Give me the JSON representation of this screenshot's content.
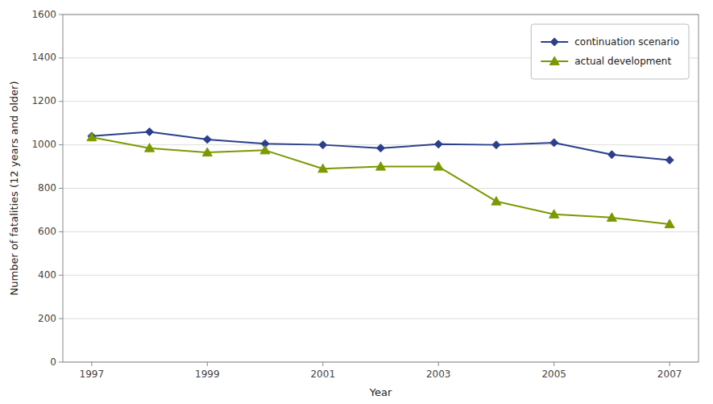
{
  "chart_data": {
    "type": "line",
    "x": [
      1997,
      1998,
      1999,
      2000,
      2001,
      2002,
      2003,
      2004,
      2005,
      2006,
      2007
    ],
    "series": [
      {
        "name": "continuation scenario",
        "color": "#2b3f8c",
        "marker": "diamond",
        "values": [
          1040,
          1060,
          1025,
          1005,
          1000,
          985,
          1003,
          1000,
          1010,
          955,
          930
        ]
      },
      {
        "name": "actual development",
        "color": "#7a9a00",
        "marker": "triangle",
        "values": [
          1035,
          985,
          965,
          975,
          890,
          900,
          900,
          740,
          680,
          665,
          635
        ]
      }
    ],
    "xlabel": "Year",
    "ylabel": "Number of fatalities (12 years and older)",
    "xlim": [
      1996.5,
      2007.5
    ],
    "ylim": [
      0,
      1600
    ],
    "xticks": [
      1997,
      1999,
      2001,
      2003,
      2005,
      2007
    ],
    "yticks": [
      0,
      200,
      400,
      600,
      800,
      1000,
      1200,
      1400,
      1600
    ],
    "grid": "y",
    "legend": "upper right"
  }
}
